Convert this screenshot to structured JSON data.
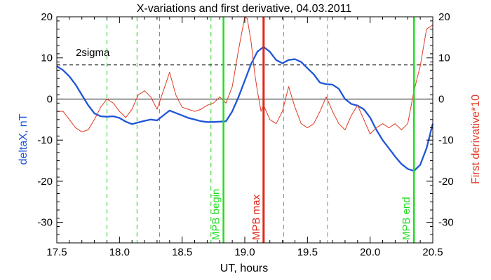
{
  "chart_data": {
    "type": "line",
    "title": "X-variations and first derivative, 04.03.2011",
    "xlabel": "UT, hours",
    "ylabel": "deltaX, nT",
    "y2label": "First derivative*10",
    "xlim": [
      17.5,
      20.5
    ],
    "ylim": [
      -35,
      20
    ],
    "y2lim": [
      -35,
      20
    ],
    "xticks": [
      "17.5",
      "18.0",
      "18.5",
      "19.0",
      "19.5",
      "20.0",
      "20.5"
    ],
    "yticks": [
      "20",
      "10",
      "0",
      "-10",
      "-20",
      "-30"
    ],
    "y2ticks": [
      "20",
      "10",
      "0",
      "-10",
      "-20",
      "-30"
    ],
    "colors": {
      "deltaX": "#1f55d8",
      "derivative": "#e03a24",
      "mpb_boundary": "#22dd22",
      "mpb_max": "#e02818",
      "dashed_green": "#22cc22",
      "threshold": "#000000"
    },
    "series": [
      {
        "name": "deltaX, nT",
        "axis": "left",
        "x": [
          17.5,
          17.55,
          17.6,
          17.65,
          17.7,
          17.75,
          17.8,
          17.85,
          17.9,
          17.95,
          18.0,
          18.05,
          18.1,
          18.15,
          18.2,
          18.25,
          18.3,
          18.35,
          18.4,
          18.45,
          18.5,
          18.55,
          18.6,
          18.65,
          18.7,
          18.75,
          18.8,
          18.85,
          18.9,
          18.95,
          19.0,
          19.05,
          19.1,
          19.15,
          19.2,
          19.25,
          19.3,
          19.35,
          19.4,
          19.45,
          19.5,
          19.55,
          19.6,
          19.65,
          19.7,
          19.75,
          19.8,
          19.85,
          19.9,
          19.95,
          20.0,
          20.05,
          20.1,
          20.15,
          20.2,
          20.25,
          20.3,
          20.35,
          20.4,
          20.45,
          20.5
        ],
        "y": [
          8,
          7,
          5.5,
          3.5,
          1,
          -1.5,
          -3.5,
          -4.2,
          -4.3,
          -4.2,
          -4.6,
          -5.5,
          -6.1,
          -5.7,
          -5.3,
          -5,
          -5.2,
          -4,
          -2.8,
          -3.4,
          -4,
          -4.6,
          -5,
          -5.4,
          -5.6,
          -5.6,
          -5.5,
          -5.4,
          -3,
          0.5,
          4.5,
          8.5,
          11.5,
          12.7,
          11.5,
          9.5,
          8.7,
          9.5,
          9.7,
          9,
          7.5,
          6,
          4,
          3.6,
          3.5,
          2.5,
          0,
          -1.2,
          -1.6,
          -2.5,
          -4.5,
          -7.5,
          -10,
          -12,
          -14,
          -15.8,
          -17,
          -17.5,
          -16,
          -12,
          -6
        ]
      },
      {
        "name": "First derivative*10",
        "axis": "right",
        "x": [
          17.5,
          17.55,
          17.6,
          17.65,
          17.7,
          17.75,
          17.8,
          17.85,
          17.9,
          17.95,
          18.0,
          18.05,
          18.1,
          18.15,
          18.2,
          18.25,
          18.3,
          18.35,
          18.4,
          18.45,
          18.5,
          18.55,
          18.6,
          18.65,
          18.7,
          18.75,
          18.8,
          18.85,
          18.9,
          18.95,
          19.0,
          19.02,
          19.05,
          19.08,
          19.1,
          19.13,
          19.15,
          19.2,
          19.25,
          19.3,
          19.35,
          19.4,
          19.45,
          19.5,
          19.55,
          19.6,
          19.65,
          19.7,
          19.75,
          19.8,
          19.85,
          19.9,
          19.95,
          20.0,
          20.05,
          20.1,
          20.15,
          20.2,
          20.25,
          20.3,
          20.35,
          20.4,
          20.45,
          20.5
        ],
        "y": [
          -3,
          -3,
          -5,
          -7,
          -8,
          -7.5,
          -5,
          -2,
          0,
          -1,
          -3,
          -4.5,
          -2.5,
          1,
          2,
          0.5,
          -2.5,
          2,
          6.5,
          1,
          -2,
          -2.5,
          -3,
          -2.5,
          -1.5,
          -1,
          0.5,
          -1,
          3,
          12,
          20,
          19.5,
          14,
          6,
          2,
          -3,
          -1.5,
          -5,
          -6,
          -3,
          3,
          -2,
          -6,
          -7,
          -6,
          -3,
          0.5,
          -3,
          -6,
          -7.5,
          -4,
          -1.5,
          -5,
          -8.5,
          -7,
          -6,
          -7,
          -6,
          -7.5,
          -6,
          2,
          8,
          17,
          18
        ]
      }
    ],
    "threshold": {
      "label": "2sigma",
      "y": 8.3
    },
    "vertical_markers": [
      {
        "label": "MPB begin",
        "x": 18.83,
        "style": "solid-green"
      },
      {
        "label": "MPB max",
        "x": 19.15,
        "style": "solid-red"
      },
      {
        "label": "MPB end",
        "x": 20.35,
        "style": "solid-green"
      }
    ],
    "dashed_markers_x": [
      17.9,
      18.14,
      18.32,
      18.73,
      19.31,
      19.66
    ],
    "legend": "none",
    "grid": false
  }
}
